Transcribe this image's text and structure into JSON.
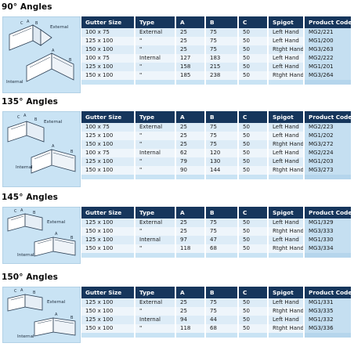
{
  "columns": [
    "Gutter Size",
    "Type",
    "A",
    "B",
    "C",
    "Spigot",
    "Product Code"
  ],
  "diagram": {
    "external_label": "External",
    "internal_label": "Internal",
    "dim_a": "A",
    "dim_b": "B",
    "dim_c": "C"
  },
  "sections": [
    {
      "title": "90° Angles",
      "rows": [
        [
          "100 x 75",
          "External",
          "25",
          "75",
          "50",
          "Left Hand",
          "MG2/221"
        ],
        [
          "125 x 100",
          "\"",
          "25",
          "75",
          "50",
          "Left Hand",
          "MG1/200"
        ],
        [
          "150 x 100",
          "\"",
          "25",
          "75",
          "50",
          "Rtght Hand",
          "MG3/263"
        ],
        [
          "100 x 75",
          "Internal",
          "127",
          "183",
          "50",
          "Left Hand",
          "MG2/222"
        ],
        [
          "125 x 100",
          "\"",
          "158",
          "215",
          "50",
          "Left Hand",
          "MG1/201"
        ],
        [
          "150 x 100",
          "\"",
          "185",
          "238",
          "50",
          "Rtght Hand",
          "MG3/264"
        ]
      ]
    },
    {
      "title": "135° Angles",
      "rows": [
        [
          "100 x 75",
          "External",
          "25",
          "75",
          "50",
          "Left Hand",
          "MG2/223"
        ],
        [
          "125 x 100",
          "\"",
          "25",
          "75",
          "50",
          "Left Hand",
          "MG1/202"
        ],
        [
          "150 x 100",
          "\"",
          "25",
          "75",
          "50",
          "Rtght Hand",
          "MG3/272"
        ],
        [
          "100 x 75",
          "Internal",
          "62",
          "120",
          "50",
          "Left Hand",
          "MG2/224"
        ],
        [
          "125 x 100",
          "\"",
          "79",
          "130",
          "50",
          "Left Hand",
          "MG1/203"
        ],
        [
          "150 x 100",
          "\"",
          "90",
          "144",
          "50",
          "Rtght Hand",
          "MG3/273"
        ]
      ]
    },
    {
      "title": "145° Angles",
      "rows": [
        [
          "125 x 100",
          "External",
          "25",
          "75",
          "50",
          "Left Hand",
          "MG1/329"
        ],
        [
          "150 x 100",
          "\"",
          "25",
          "75",
          "50",
          "Rtght Hand",
          "MG3/333"
        ],
        [
          "125 x 100",
          "Internal",
          "97",
          "47",
          "50",
          "Left Hand",
          "MG1/330"
        ],
        [
          "150 x 100",
          "\"",
          "118",
          "68",
          "50",
          "Rtght Hand",
          "MG3/334"
        ]
      ]
    },
    {
      "title": "150° Angles",
      "rows": [
        [
          "125 x 100",
          "External",
          "25",
          "75",
          "50",
          "Left Hand",
          "MG1/331"
        ],
        [
          "150 x 100",
          "\"",
          "25",
          "75",
          "50",
          "Rtght Hand",
          "MG3/335"
        ],
        [
          "125 x 100",
          "Internal",
          "94",
          "44",
          "50",
          "Left Hand",
          "MG1/332"
        ],
        [
          "150 x 100",
          "\"",
          "118",
          "68",
          "50",
          "Rtght Hand",
          "MG3/336"
        ]
      ]
    }
  ]
}
